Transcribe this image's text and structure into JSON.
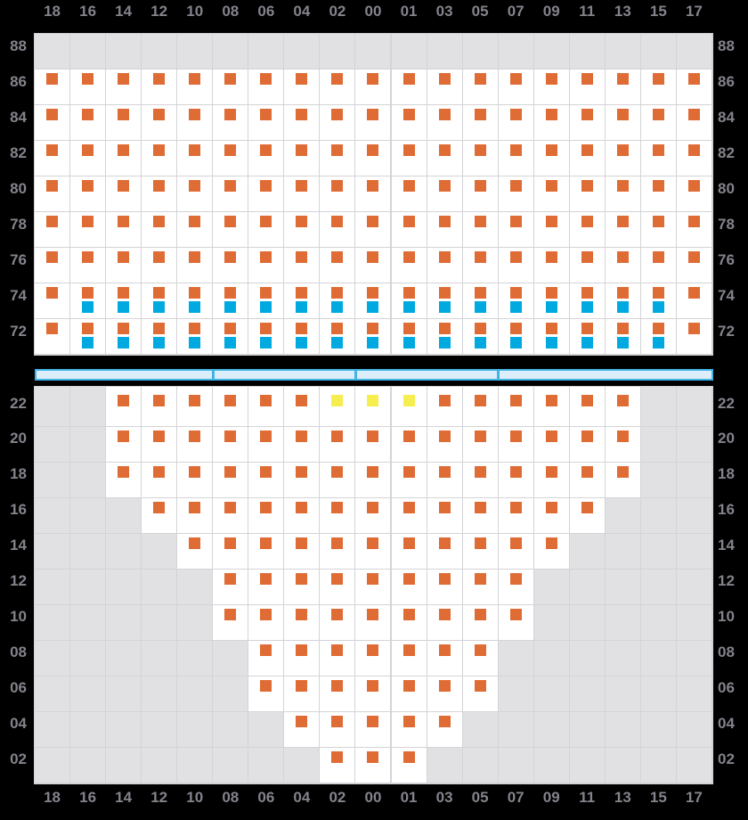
{
  "colors": {
    "background": "#000000",
    "label_text": "#83838c",
    "grid_line": "#d4d4d8",
    "cell_white": "#ffffff",
    "cell_gray": "#e1e1e3",
    "marker_orange": "#df6c35",
    "marker_blue": "#00a9e0",
    "marker_yellow": "#f6ee4e",
    "divider_fill": "#ddeefa",
    "divider_border": "#3fb4e6"
  },
  "board": {
    "columns": [
      "18",
      "16",
      "14",
      "12",
      "10",
      "08",
      "06",
      "04",
      "02",
      "00",
      "01",
      "03",
      "05",
      "07",
      "09",
      "11",
      "13",
      "15",
      "17"
    ],
    "upper_panel": {
      "row_labels": [
        "88",
        "86",
        "84",
        "82",
        "80",
        "78",
        "76",
        "74",
        "72"
      ],
      "rows": [
        {
          "label": "88",
          "fill": "gray",
          "orange": [],
          "blue": []
        },
        {
          "label": "86",
          "fill": "white",
          "orange": [
            "18",
            "16",
            "14",
            "12",
            "10",
            "08",
            "06",
            "04",
            "02",
            "00",
            "01",
            "03",
            "05",
            "07",
            "09",
            "11",
            "13",
            "15",
            "17"
          ],
          "blue": []
        },
        {
          "label": "84",
          "fill": "white",
          "orange": [
            "18",
            "16",
            "14",
            "12",
            "10",
            "08",
            "06",
            "04",
            "02",
            "00",
            "01",
            "03",
            "05",
            "07",
            "09",
            "11",
            "13",
            "15",
            "17"
          ],
          "blue": []
        },
        {
          "label": "82",
          "fill": "white",
          "orange": [
            "18",
            "16",
            "14",
            "12",
            "10",
            "08",
            "06",
            "04",
            "02",
            "00",
            "01",
            "03",
            "05",
            "07",
            "09",
            "11",
            "13",
            "15",
            "17"
          ],
          "blue": []
        },
        {
          "label": "80",
          "fill": "white",
          "orange": [
            "18",
            "16",
            "14",
            "12",
            "10",
            "08",
            "06",
            "04",
            "02",
            "00",
            "01",
            "03",
            "05",
            "07",
            "09",
            "11",
            "13",
            "15",
            "17"
          ],
          "blue": []
        },
        {
          "label": "78",
          "fill": "white",
          "orange": [
            "18",
            "16",
            "14",
            "12",
            "10",
            "08",
            "06",
            "04",
            "02",
            "00",
            "01",
            "03",
            "05",
            "07",
            "09",
            "11",
            "13",
            "15",
            "17"
          ],
          "blue": []
        },
        {
          "label": "76",
          "fill": "white",
          "orange": [
            "18",
            "16",
            "14",
            "12",
            "10",
            "08",
            "06",
            "04",
            "02",
            "00",
            "01",
            "03",
            "05",
            "07",
            "09",
            "11",
            "13",
            "15",
            "17"
          ],
          "blue": []
        },
        {
          "label": "74",
          "fill": "white",
          "orange": [
            "18",
            "16",
            "14",
            "12",
            "10",
            "08",
            "06",
            "04",
            "02",
            "00",
            "01",
            "03",
            "05",
            "07",
            "09",
            "11",
            "13",
            "15",
            "17"
          ],
          "blue": [
            "16",
            "14",
            "12",
            "10",
            "08",
            "06",
            "04",
            "02",
            "00",
            "01",
            "03",
            "05",
            "07",
            "09",
            "11",
            "13",
            "15"
          ]
        },
        {
          "label": "72",
          "fill": "white",
          "orange": [
            "18",
            "16",
            "14",
            "12",
            "10",
            "08",
            "06",
            "04",
            "02",
            "00",
            "01",
            "03",
            "05",
            "07",
            "09",
            "11",
            "13",
            "15",
            "17"
          ],
          "blue": [
            "16",
            "14",
            "12",
            "10",
            "08",
            "06",
            "04",
            "02",
            "00",
            "01",
            "03",
            "05",
            "07",
            "09",
            "11",
            "13",
            "15"
          ]
        }
      ]
    },
    "divider": {
      "segment_split_after_column_counts": [
        5,
        9,
        13
      ]
    },
    "lower_panel": {
      "row_labels": [
        "22",
        "20",
        "18",
        "16",
        "14",
        "12",
        "10",
        "08",
        "06",
        "04",
        "02"
      ],
      "rows": [
        {
          "label": "22",
          "cols": [
            "14",
            "12",
            "10",
            "08",
            "06",
            "04",
            "02",
            "00",
            "01",
            "03",
            "05",
            "07",
            "09",
            "11",
            "13"
          ],
          "yellow": [
            "02",
            "00",
            "01"
          ]
        },
        {
          "label": "20",
          "cols": [
            "14",
            "12",
            "10",
            "08",
            "06",
            "04",
            "02",
            "00",
            "01",
            "03",
            "05",
            "07",
            "09",
            "11",
            "13"
          ],
          "yellow": []
        },
        {
          "label": "18",
          "cols": [
            "14",
            "12",
            "10",
            "08",
            "06",
            "04",
            "02",
            "00",
            "01",
            "03",
            "05",
            "07",
            "09",
            "11",
            "13"
          ],
          "yellow": []
        },
        {
          "label": "16",
          "cols": [
            "12",
            "10",
            "08",
            "06",
            "04",
            "02",
            "00",
            "01",
            "03",
            "05",
            "07",
            "09",
            "11"
          ],
          "yellow": []
        },
        {
          "label": "14",
          "cols": [
            "10",
            "08",
            "06",
            "04",
            "02",
            "00",
            "01",
            "03",
            "05",
            "07",
            "09"
          ],
          "yellow": []
        },
        {
          "label": "12",
          "cols": [
            "08",
            "06",
            "04",
            "02",
            "00",
            "01",
            "03",
            "05",
            "07"
          ],
          "yellow": []
        },
        {
          "label": "10",
          "cols": [
            "08",
            "06",
            "04",
            "02",
            "00",
            "01",
            "03",
            "05",
            "07"
          ],
          "yellow": []
        },
        {
          "label": "08",
          "cols": [
            "06",
            "04",
            "02",
            "00",
            "01",
            "03",
            "05"
          ],
          "yellow": []
        },
        {
          "label": "06",
          "cols": [
            "06",
            "04",
            "02",
            "00",
            "01",
            "03",
            "05"
          ],
          "yellow": []
        },
        {
          "label": "04",
          "cols": [
            "04",
            "02",
            "00",
            "01",
            "03"
          ],
          "yellow": []
        },
        {
          "label": "02",
          "cols": [
            "02",
            "00",
            "01"
          ],
          "yellow": []
        }
      ]
    }
  }
}
